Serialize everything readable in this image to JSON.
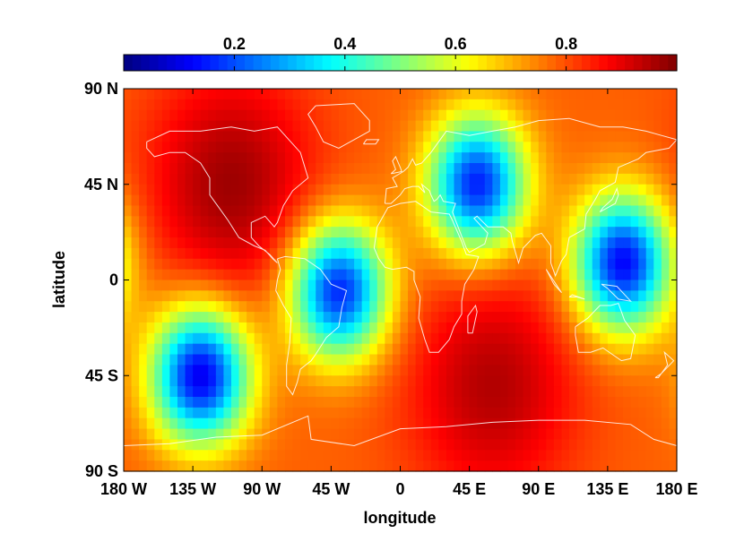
{
  "chart_data": {
    "type": "heatmap",
    "title": "",
    "xlabel": "longitude",
    "ylabel": "latitude",
    "xlim": [
      -180,
      180
    ],
    "ylim": [
      -90,
      90
    ],
    "grid": false,
    "colormap": "jet",
    "colorbar": {
      "placement": "top",
      "range": [
        0.0,
        1.0
      ],
      "ticks": [
        0.2,
        0.4,
        0.6,
        0.8
      ],
      "tick_labels": [
        "0.2",
        "0.4",
        "0.6",
        "0.8"
      ]
    },
    "x_ticks": [
      -180,
      -135,
      -90,
      -45,
      0,
      45,
      90,
      135,
      180
    ],
    "x_tick_labels": [
      "180 W",
      "135 W",
      "90 W",
      "45 W",
      "0",
      "45 E",
      "90 E",
      "135 E",
      "180 E"
    ],
    "y_ticks": [
      90,
      45,
      0,
      -45,
      -90
    ],
    "y_tick_labels": [
      "90 N",
      "45 N",
      "0",
      "45 S",
      "90 S"
    ],
    "background_value": 0.78,
    "grid_resolution_deg": 5,
    "features": [
      {
        "kind": "minimum",
        "lon": -130,
        "lat": -45,
        "value": 0.1
      },
      {
        "kind": "minimum",
        "lon": -40,
        "lat": -5,
        "value": 0.15
      },
      {
        "kind": "minimum",
        "lon": 50,
        "lat": 45,
        "value": 0.15
      },
      {
        "kind": "minimum",
        "lon": 145,
        "lat": 8,
        "value": 0.12
      },
      {
        "kind": "maximum",
        "lon": -110,
        "lat": 45,
        "value": 0.97
      },
      {
        "kind": "maximum",
        "lon": 60,
        "lat": -50,
        "value": 0.95
      }
    ],
    "coastline_color": "#ffffff"
  }
}
